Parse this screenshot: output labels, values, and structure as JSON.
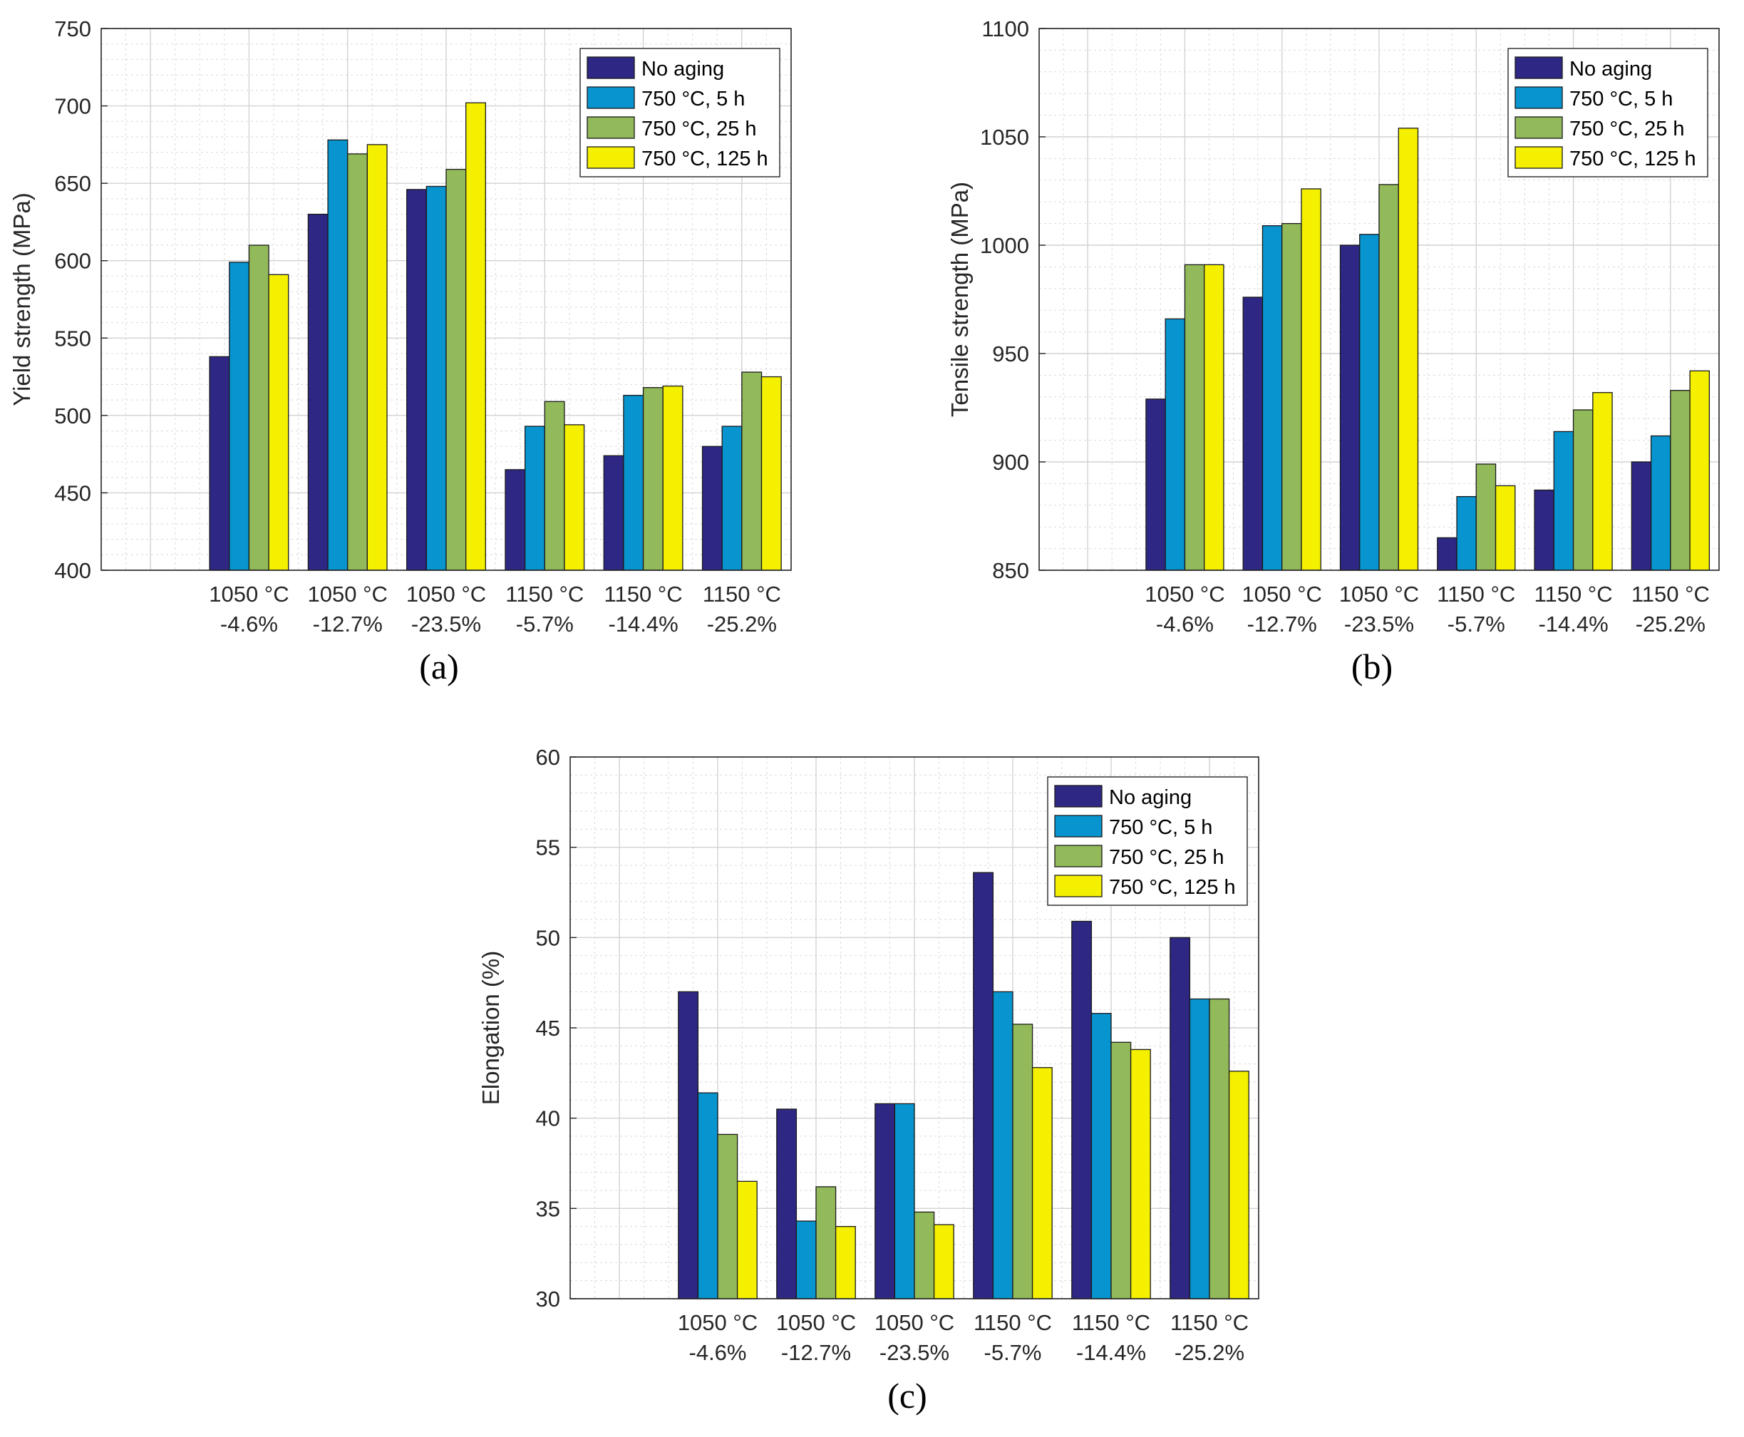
{
  "figure": {
    "panels": [
      "(a)",
      "(b)",
      "(c)"
    ]
  },
  "colors": {
    "No aging": "#2e2784",
    "750 °C, 5 h": "#0794cf",
    "750 °C, 25 h": "#92b95a",
    "750 °C, 125 h": "#f4f000"
  },
  "chart_data": [
    {
      "type": "bar",
      "panel_label": "(a)",
      "ylabel": "Yield strength (MPa)",
      "xlabel": "",
      "ylim": [
        400,
        750
      ],
      "yticks": [
        400,
        450,
        500,
        550,
        600,
        650,
        700,
        750
      ],
      "grid": true,
      "legend_position": "top-right",
      "categories": [
        {
          "line1": "1050 °C",
          "line2": "-4.6%"
        },
        {
          "line1": "1050 °C",
          "line2": "-12.7%"
        },
        {
          "line1": "1050 °C",
          "line2": "-23.5%"
        },
        {
          "line1": "1150 °C",
          "line2": "-5.7%"
        },
        {
          "line1": "1150 °C",
          "line2": "-14.4%"
        },
        {
          "line1": "1150 °C",
          "line2": "-25.2%"
        }
      ],
      "series": [
        {
          "name": "No aging",
          "values": [
            538,
            630,
            646,
            465,
            474,
            480
          ]
        },
        {
          "name": "750 °C, 5 h",
          "values": [
            599,
            678,
            648,
            493,
            513,
            493
          ]
        },
        {
          "name": "750 °C, 25 h",
          "values": [
            610,
            669,
            659,
            509,
            518,
            528
          ]
        },
        {
          "name": "750 °C, 125 h",
          "values": [
            591,
            675,
            702,
            494,
            519,
            525
          ]
        }
      ]
    },
    {
      "type": "bar",
      "panel_label": "(b)",
      "ylabel": "Tensile strength (MPa)",
      "xlabel": "",
      "ylim": [
        850,
        1100
      ],
      "yticks": [
        850,
        900,
        950,
        1000,
        1050,
        1100
      ],
      "grid": true,
      "legend_position": "top-right",
      "categories": [
        {
          "line1": "1050 °C",
          "line2": "-4.6%"
        },
        {
          "line1": "1050 °C",
          "line2": "-12.7%"
        },
        {
          "line1": "1050 °C",
          "line2": "-23.5%"
        },
        {
          "line1": "1150 °C",
          "line2": "-5.7%"
        },
        {
          "line1": "1150 °C",
          "line2": "-14.4%"
        },
        {
          "line1": "1150 °C",
          "line2": "-25.2%"
        }
      ],
      "series": [
        {
          "name": "No aging",
          "values": [
            929,
            976,
            1000,
            865,
            887,
            900
          ]
        },
        {
          "name": "750 °C, 5 h",
          "values": [
            966,
            1009,
            1005,
            884,
            914,
            912
          ]
        },
        {
          "name": "750 °C, 25 h",
          "values": [
            991,
            1010,
            1028,
            899,
            924,
            933
          ]
        },
        {
          "name": "750 °C, 125 h",
          "values": [
            991,
            1026,
            1054,
            889,
            932,
            942
          ]
        }
      ]
    },
    {
      "type": "bar",
      "panel_label": "(c)",
      "ylabel": "Elongation (%)",
      "xlabel": "",
      "ylim": [
        30,
        60
      ],
      "yticks": [
        30,
        35,
        40,
        45,
        50,
        55,
        60
      ],
      "grid": true,
      "legend_position": "top-right",
      "categories": [
        {
          "line1": "1050 °C",
          "line2": "-4.6%"
        },
        {
          "line1": "1050 °C",
          "line2": "-12.7%"
        },
        {
          "line1": "1050 °C",
          "line2": "-23.5%"
        },
        {
          "line1": "1150 °C",
          "line2": "-5.7%"
        },
        {
          "line1": "1150 °C",
          "line2": "-14.4%"
        },
        {
          "line1": "1150 °C",
          "line2": "-25.2%"
        }
      ],
      "series": [
        {
          "name": "No aging",
          "values": [
            47.0,
            40.5,
            40.8,
            53.6,
            50.9,
            50.0
          ]
        },
        {
          "name": "750 °C, 5 h",
          "values": [
            41.4,
            34.3,
            40.8,
            47.0,
            45.8,
            46.6
          ]
        },
        {
          "name": "750 °C, 25 h",
          "values": [
            39.1,
            36.2,
            34.8,
            45.2,
            44.2,
            46.6
          ]
        },
        {
          "name": "750 °C, 125 h",
          "values": [
            36.5,
            34.0,
            34.1,
            42.8,
            43.8,
            42.6
          ]
        }
      ]
    }
  ]
}
